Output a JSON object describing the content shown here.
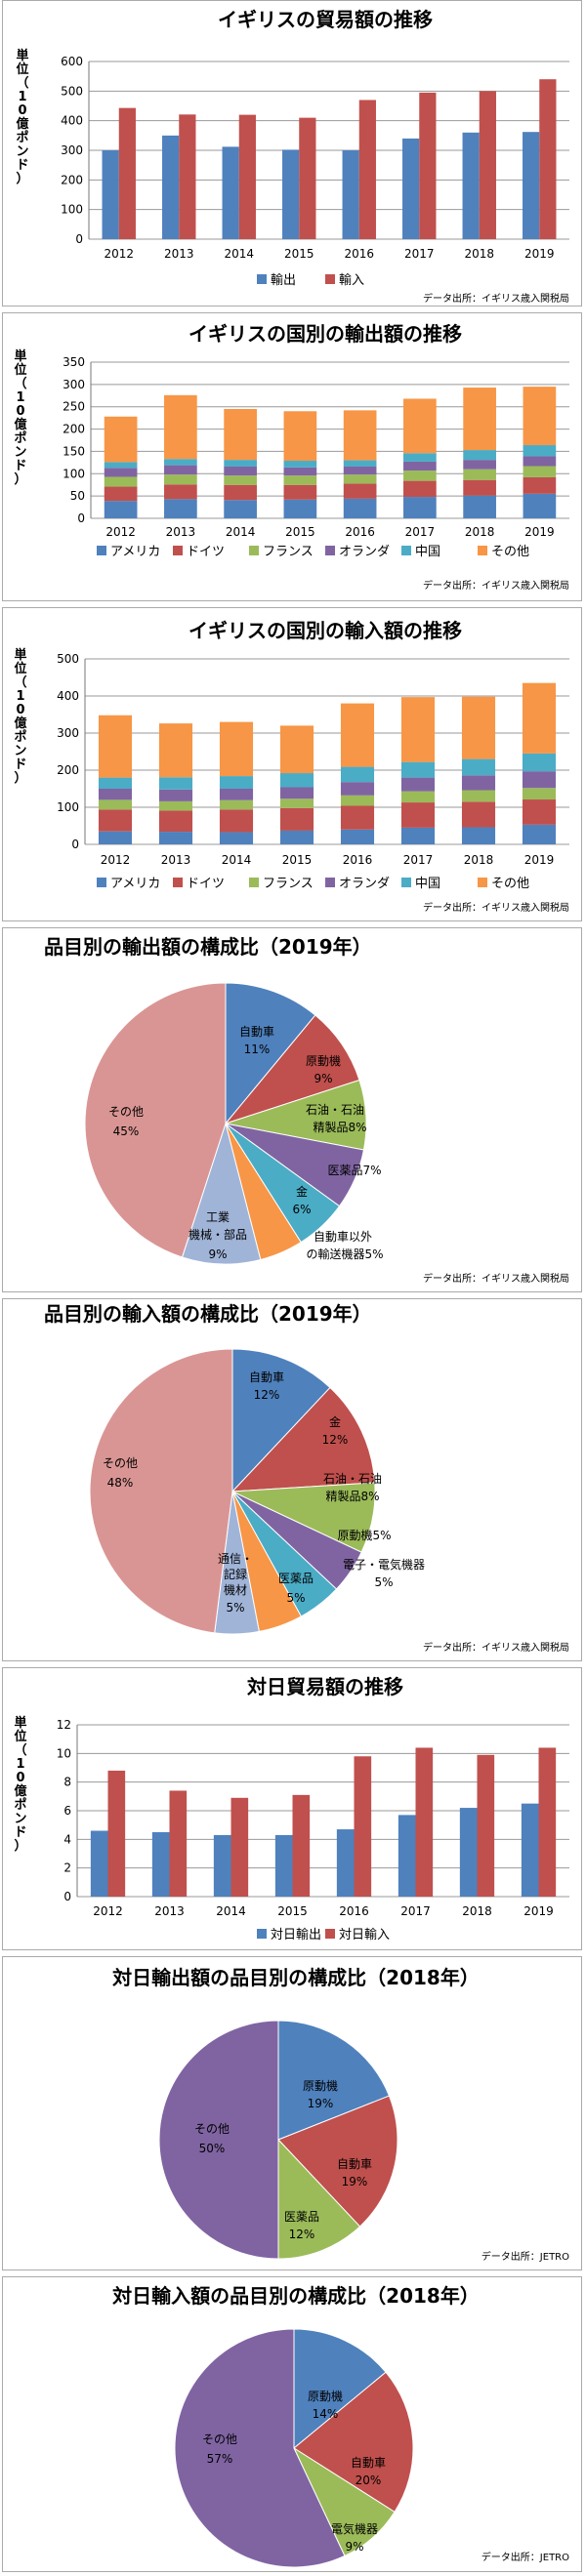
{
  "source_label": "データ出所：",
  "colors": {
    "blue": "#4f81bd",
    "red": "#c0504d",
    "green": "#9bbb59",
    "purple": "#8064a2",
    "teal": "#4bacc6",
    "orange": "#f79646",
    "lightblue": "#a0b4d8",
    "pink": "#d99594"
  },
  "chart_data": [
    {
      "type": "bar",
      "title": "イギリスの貿易額の推移",
      "ylabel": "単位（10億ポンド）",
      "ylim": [
        0,
        600
      ],
      "yticks": [
        0,
        100,
        200,
        300,
        400,
        500,
        600
      ],
      "categories": [
        "2012",
        "2013",
        "2014",
        "2015",
        "2016",
        "2017",
        "2018",
        "2019"
      ],
      "series": [
        {
          "name": "輸出",
          "color": "#4f81bd",
          "values": [
            300,
            350,
            312,
            302,
            300,
            340,
            360,
            362
          ]
        },
        {
          "name": "輸入",
          "color": "#c0504d",
          "values": [
            443,
            421,
            420,
            410,
            470,
            495,
            500,
            540
          ]
        }
      ],
      "source": "イギリス歳入関税局"
    },
    {
      "type": "bar",
      "stacked": true,
      "title": "イギリスの国別の輸出額の推移",
      "ylabel": "単位（10億ポンド）",
      "ylim": [
        0,
        350
      ],
      "yticks": [
        0,
        50,
        100,
        150,
        200,
        250,
        300,
        350
      ],
      "categories": [
        "2012",
        "2013",
        "2014",
        "2015",
        "2016",
        "2017",
        "2018",
        "2019"
      ],
      "series": [
        {
          "name": "アメリカ",
          "color": "#4f81bd",
          "values": [
            39,
            43,
            41,
            42,
            44,
            48,
            51,
            55
          ]
        },
        {
          "name": "ドイツ",
          "color": "#c0504d",
          "values": [
            32,
            33,
            34,
            33,
            34,
            36,
            35,
            37
          ]
        },
        {
          "name": "フランス",
          "color": "#9bbb59",
          "values": [
            22,
            22,
            21,
            21,
            20,
            23,
            24,
            25
          ]
        },
        {
          "name": "オランダ",
          "color": "#8064a2",
          "values": [
            20,
            21,
            20,
            18,
            18,
            20,
            21,
            22
          ]
        },
        {
          "name": "中国",
          "color": "#4bacc6",
          "values": [
            13,
            14,
            15,
            15,
            14,
            19,
            22,
            25
          ]
        },
        {
          "name": "その他",
          "color": "#f79646",
          "values": [
            102,
            143,
            114,
            111,
            112,
            122,
            140,
            131
          ]
        }
      ],
      "source": "イギリス歳入関税局"
    },
    {
      "type": "bar",
      "stacked": true,
      "title": "イギリスの国別の輸入額の推移",
      "ylabel": "単位（10億ポンド）",
      "ylim": [
        0,
        500
      ],
      "yticks": [
        0,
        100,
        200,
        300,
        400,
        500
      ],
      "categories": [
        "2012",
        "2013",
        "2014",
        "2015",
        "2016",
        "2017",
        "2018",
        "2019"
      ],
      "series": [
        {
          "name": "アメリカ",
          "color": "#4f81bd",
          "values": [
            35,
            34,
            33,
            37,
            40,
            45,
            46,
            53
          ]
        },
        {
          "name": "ドイツ",
          "color": "#c0504d",
          "values": [
            59,
            57,
            61,
            61,
            64,
            68,
            69,
            68
          ]
        },
        {
          "name": "フランス",
          "color": "#9bbb59",
          "values": [
            26,
            25,
            25,
            25,
            28,
            30,
            31,
            31
          ]
        },
        {
          "name": "オランダ",
          "color": "#8064a2",
          "values": [
            30,
            32,
            31,
            31,
            36,
            37,
            40,
            45
          ]
        },
        {
          "name": "中国",
          "color": "#4bacc6",
          "values": [
            30,
            33,
            34,
            38,
            41,
            42,
            44,
            48
          ]
        },
        {
          "name": "その他",
          "color": "#f79646",
          "values": [
            168,
            145,
            146,
            128,
            171,
            175,
            168,
            190
          ]
        }
      ],
      "source": "イギリス歳入関税局"
    },
    {
      "type": "pie",
      "title": "品目別の輸出額の構成比（2019年）",
      "slices": [
        {
          "label": "自動車",
          "value": 11,
          "color": "#4f81bd"
        },
        {
          "label": "原動機",
          "value": 9,
          "color": "#c0504d"
        },
        {
          "label": "石油・石油精製品",
          "value": 8,
          "color": "#9bbb59"
        },
        {
          "label": "医薬品",
          "value": 7,
          "color": "#8064a2"
        },
        {
          "label": "金",
          "value": 6,
          "color": "#4bacc6"
        },
        {
          "label": "自動車以外の輸送機器",
          "value": 5,
          "color": "#f79646"
        },
        {
          "label": "工業機械・部品",
          "value": 9,
          "color": "#a0b4d8"
        },
        {
          "label": "その他",
          "value": 45,
          "color": "#d99594"
        }
      ],
      "source": "イギリス歳入関税局"
    },
    {
      "type": "pie",
      "title": "品目別の輸入額の構成比（2019年）",
      "slices": [
        {
          "label": "自動車",
          "value": 12,
          "color": "#4f81bd"
        },
        {
          "label": "金",
          "value": 12,
          "color": "#c0504d"
        },
        {
          "label": "石油・石油精製品",
          "value": 8,
          "color": "#9bbb59"
        },
        {
          "label": "原動機",
          "value": 5,
          "color": "#8064a2"
        },
        {
          "label": "電子・電気機器",
          "value": 5,
          "color": "#4bacc6"
        },
        {
          "label": "医薬品",
          "value": 5,
          "color": "#f79646"
        },
        {
          "label": "通信・記録機材",
          "value": 5,
          "color": "#a0b4d8"
        },
        {
          "label": "その他",
          "value": 48,
          "color": "#d99594"
        }
      ],
      "source": "イギリス歳入関税局"
    },
    {
      "type": "bar",
      "title": "対日貿易額の推移",
      "ylabel": "単位（10億ポンド）",
      "ylim": [
        0,
        12
      ],
      "yticks": [
        0,
        2,
        4,
        6,
        8,
        10,
        12
      ],
      "categories": [
        "2012",
        "2013",
        "2014",
        "2015",
        "2016",
        "2017",
        "2018",
        "2019"
      ],
      "series": [
        {
          "name": "対日輸出",
          "color": "#4f81bd",
          "values": [
            4.6,
            4.5,
            4.3,
            4.3,
            4.7,
            5.7,
            6.2,
            6.5
          ]
        },
        {
          "name": "対日輸入",
          "color": "#c0504d",
          "values": [
            8.8,
            7.4,
            6.9,
            7.1,
            9.8,
            10.4,
            9.9,
            10.4
          ]
        }
      ],
      "source": ""
    },
    {
      "type": "pie",
      "title": "対日輸出額の品目別の構成比（2018年）",
      "slices": [
        {
          "label": "原動機",
          "value": 19,
          "color": "#4f81bd"
        },
        {
          "label": "自動車",
          "value": 19,
          "color": "#c0504d"
        },
        {
          "label": "医薬品",
          "value": 12,
          "color": "#9bbb59"
        },
        {
          "label": "その他",
          "value": 50,
          "color": "#8064a2"
        }
      ],
      "source": "JETRO"
    },
    {
      "type": "pie",
      "title": "対日輸入額の品目別の構成比（2018年）",
      "slices": [
        {
          "label": "原動機",
          "value": 14,
          "color": "#4f81bd"
        },
        {
          "label": "自動車",
          "value": 20,
          "color": "#c0504d"
        },
        {
          "label": "電気機器",
          "value": 9,
          "color": "#9bbb59"
        },
        {
          "label": "その他",
          "value": 57,
          "color": "#8064a2"
        }
      ],
      "source": "JETRO"
    }
  ]
}
